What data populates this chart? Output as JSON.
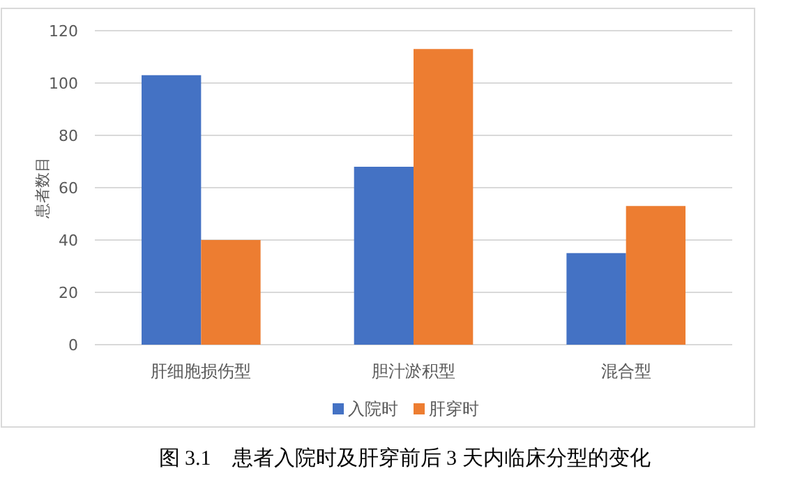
{
  "chart_data": {
    "type": "bar",
    "title": "图 3.1　患者入院时及肝穿前后 3 天内临床分型的变化",
    "ylabel": "患者数目",
    "categories": [
      "肝细胞损伤型",
      "胆汁淤积型",
      "混合型"
    ],
    "series": [
      {
        "name": "入院时",
        "color": "#4472c4",
        "values": [
          103,
          68,
          35
        ]
      },
      {
        "name": "肝穿时",
        "color": "#ed7d31",
        "values": [
          40,
          113,
          53
        ]
      }
    ],
    "ylim": [
      0,
      120
    ],
    "yticks": [
      0,
      20,
      40,
      60,
      80,
      100,
      120
    ],
    "grid": "y",
    "legend": "bottom"
  }
}
